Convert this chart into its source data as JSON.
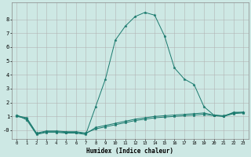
{
  "xlabel": "Humidex (Indice chaleur)",
  "background_color": "#cde8e4",
  "grid_color": "#b0b0b0",
  "line_color": "#1a7a6e",
  "xlim": [
    -0.5,
    23.5
  ],
  "ylim": [
    -0.6,
    9.2
  ],
  "xticks": [
    0,
    1,
    2,
    3,
    4,
    5,
    6,
    7,
    8,
    9,
    10,
    11,
    12,
    13,
    14,
    15,
    16,
    17,
    18,
    19,
    20,
    21,
    22,
    23
  ],
  "yticks": [
    0,
    1,
    2,
    3,
    4,
    5,
    6,
    7,
    8
  ],
  "ytick_labels": [
    "-0",
    "1",
    "2",
    "3",
    "4",
    "5",
    "6",
    "7",
    "8"
  ],
  "series": [
    {
      "x": [
        0,
        1,
        2,
        3,
        4,
        5,
        6,
        7,
        8,
        9,
        10,
        11,
        12,
        13,
        14,
        15,
        16,
        17,
        18,
        19,
        20,
        21,
        22,
        23
      ],
      "y": [
        1.1,
        0.75,
        -0.3,
        -0.15,
        -0.15,
        -0.2,
        -0.2,
        -0.3,
        1.7,
        3.7,
        6.5,
        7.5,
        8.2,
        8.5,
        8.3,
        6.8,
        4.5,
        3.7,
        3.3,
        1.7,
        1.1,
        1.0,
        1.3,
        1.3
      ]
    },
    {
      "x": [
        0,
        1,
        2,
        3,
        4,
        5,
        6,
        7,
        8,
        9,
        10,
        11,
        12,
        13,
        14,
        15,
        16,
        17,
        18,
        19,
        20,
        21,
        22,
        23
      ],
      "y": [
        1.0,
        0.85,
        -0.25,
        -0.1,
        -0.1,
        -0.15,
        -0.15,
        -0.25,
        0.2,
        0.35,
        0.5,
        0.65,
        0.8,
        0.9,
        1.0,
        1.05,
        1.1,
        1.15,
        1.2,
        1.25,
        1.1,
        1.05,
        1.25,
        1.3
      ]
    },
    {
      "x": [
        0,
        1,
        2,
        3,
        4,
        5,
        6,
        7,
        8,
        9,
        10,
        11,
        12,
        13,
        14,
        15,
        16,
        17,
        18,
        19,
        20,
        21,
        22,
        23
      ],
      "y": [
        1.05,
        0.9,
        -0.2,
        -0.05,
        -0.05,
        -0.1,
        -0.1,
        -0.2,
        0.1,
        0.25,
        0.4,
        0.55,
        0.7,
        0.8,
        0.9,
        0.95,
        1.0,
        1.05,
        1.1,
        1.15,
        1.05,
        1.0,
        1.2,
        1.25
      ]
    }
  ]
}
